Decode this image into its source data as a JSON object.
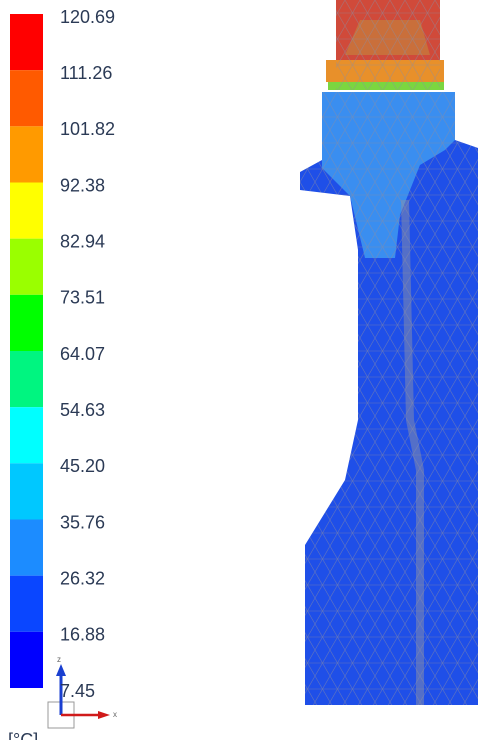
{
  "legend": {
    "labels": [
      "120.69",
      "111.26",
      "101.82",
      "92.38",
      "82.94",
      "73.51",
      "64.07",
      "54.63",
      "45.20",
      "35.76",
      "26.32",
      "16.88",
      "7.45"
    ],
    "colors": [
      "#ff0000",
      "#ff5a00",
      "#ff9a00",
      "#ffff00",
      "#9aff00",
      "#00ff00",
      "#00f580",
      "#00ffff",
      "#00c8ff",
      "#1c8cff",
      "#0a46ff",
      "#0000ff"
    ]
  },
  "unit": "[°C]",
  "triad": {
    "z": "z",
    "x": "x"
  }
}
